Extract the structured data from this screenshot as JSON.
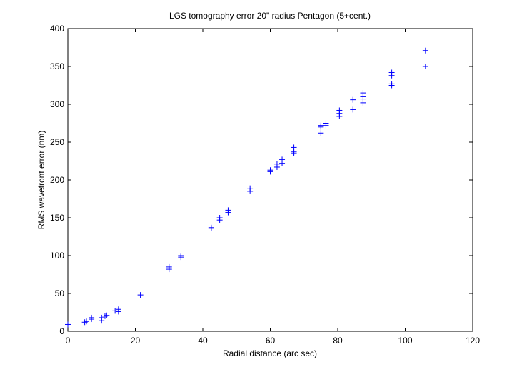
{
  "chart_data": {
    "type": "scatter",
    "title": "LGS tomography error 20\" radius Pentagon (5+cent.)",
    "xlabel": "Radial distance (arc sec)",
    "ylabel": "RMS wavefront error (nm)",
    "xlim": [
      0,
      120
    ],
    "ylim": [
      0,
      400
    ],
    "xticks": [
      "0",
      "20",
      "40",
      "60",
      "80",
      "100",
      "120"
    ],
    "yticks": [
      "0",
      "50",
      "100",
      "150",
      "200",
      "250",
      "300",
      "350",
      "400"
    ],
    "grid": false,
    "marker": "+",
    "color": "#0000ff",
    "series": [
      {
        "points": [
          [
            0,
            9
          ],
          [
            5,
            12
          ],
          [
            5.5,
            13
          ],
          [
            7,
            16
          ],
          [
            7,
            18
          ],
          [
            10,
            14
          ],
          [
            10,
            18
          ],
          [
            11,
            20
          ],
          [
            11.5,
            21
          ],
          [
            14,
            27
          ],
          [
            15,
            26
          ],
          [
            15,
            29
          ],
          [
            21.5,
            48
          ],
          [
            30,
            82
          ],
          [
            30,
            85
          ],
          [
            33.5,
            98
          ],
          [
            33.5,
            100
          ],
          [
            42.5,
            136
          ],
          [
            42.5,
            137
          ],
          [
            45,
            147
          ],
          [
            45,
            150
          ],
          [
            47.5,
            157
          ],
          [
            47.5,
            160
          ],
          [
            54,
            185
          ],
          [
            54,
            189
          ],
          [
            60,
            211
          ],
          [
            60,
            213
          ],
          [
            62,
            217
          ],
          [
            62,
            221
          ],
          [
            63.5,
            222
          ],
          [
            63.5,
            227
          ],
          [
            67,
            235
          ],
          [
            67,
            237
          ],
          [
            67,
            243
          ],
          [
            75,
            262
          ],
          [
            75,
            270
          ],
          [
            75,
            272
          ],
          [
            76.5,
            272
          ],
          [
            76.5,
            275
          ],
          [
            80.5,
            284
          ],
          [
            80.5,
            288
          ],
          [
            80.5,
            292
          ],
          [
            84.5,
            293
          ],
          [
            84.5,
            306
          ],
          [
            87.5,
            302
          ],
          [
            87.5,
            307
          ],
          [
            87.5,
            310
          ],
          [
            87.5,
            315
          ],
          [
            96,
            325
          ],
          [
            96,
            327
          ],
          [
            96,
            338
          ],
          [
            96,
            342
          ],
          [
            106,
            350
          ],
          [
            106,
            371
          ]
        ]
      }
    ]
  }
}
